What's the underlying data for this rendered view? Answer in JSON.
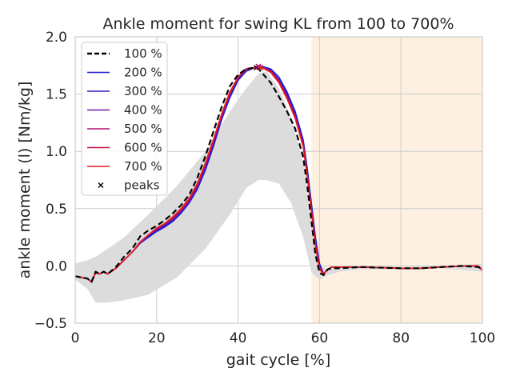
{
  "chart_data": {
    "type": "line",
    "title": "Ankle moment for swing KL from 100 to 700%",
    "xlabel": "gait cycle [%]",
    "ylabel": "ankle moment (l) [Nm/kg]",
    "xlim": [
      0,
      100
    ],
    "ylim": [
      -0.5,
      2.0
    ],
    "xticks": [
      "0",
      "20",
      "40",
      "60",
      "80",
      "100"
    ],
    "yticks": [
      "−0.5",
      "0.0",
      "0.5",
      "1.0",
      "1.5",
      "2.0"
    ],
    "grid": true,
    "legend_position": "top-left",
    "shaded_region": {
      "x_start": 58,
      "x_end": 100,
      "color": "#fdf0e0"
    },
    "variability_band": {
      "color": "#dcdcdc",
      "x": [
        0,
        3,
        5,
        8,
        12,
        18,
        25,
        32,
        38,
        42,
        45,
        47,
        50,
        53,
        56,
        58,
        60,
        62,
        65,
        70,
        80,
        90,
        100
      ],
      "upper": [
        0.02,
        0.05,
        0.08,
        0.15,
        0.25,
        0.45,
        0.7,
        1.0,
        1.35,
        1.55,
        1.68,
        1.7,
        1.55,
        1.3,
        0.9,
        0.4,
        0.0,
        -0.03,
        -0.02,
        -0.01,
        -0.01,
        0.0,
        0.02
      ],
      "lower": [
        -0.12,
        -0.2,
        -0.32,
        -0.32,
        -0.3,
        -0.25,
        -0.1,
        0.15,
        0.45,
        0.68,
        0.75,
        0.75,
        0.72,
        0.55,
        0.25,
        -0.05,
        -0.12,
        -0.08,
        -0.05,
        -0.03,
        -0.03,
        -0.02,
        -0.05
      ]
    },
    "x": [
      0,
      3,
      4,
      5,
      6,
      7,
      8,
      10,
      12,
      14,
      16,
      18,
      20,
      22,
      24,
      26,
      28,
      30,
      32,
      34,
      36,
      38,
      40,
      42,
      44,
      45,
      46,
      48,
      50,
      52,
      54,
      56,
      57,
      58,
      59,
      60,
      61,
      62,
      63,
      65,
      70,
      80,
      85,
      90,
      95,
      99,
      100
    ],
    "series": [
      {
        "name": "100 %",
        "color": "#000000",
        "dash": true,
        "values": [
          -0.09,
          -0.11,
          -0.14,
          -0.05,
          -0.07,
          -0.05,
          -0.07,
          -0.01,
          0.08,
          0.15,
          0.26,
          0.31,
          0.35,
          0.4,
          0.46,
          0.53,
          0.62,
          0.77,
          0.96,
          1.18,
          1.39,
          1.57,
          1.67,
          1.72,
          1.73,
          1.72,
          1.68,
          1.6,
          1.48,
          1.35,
          1.2,
          0.95,
          0.7,
          0.4,
          0.1,
          -0.06,
          -0.08,
          -0.03,
          -0.02,
          -0.02,
          -0.01,
          -0.02,
          -0.02,
          -0.01,
          0.0,
          -0.01,
          -0.03
        ]
      },
      {
        "name": "200 %",
        "color": "#1f1fd6",
        "values": [
          -0.09,
          -0.11,
          -0.14,
          -0.06,
          -0.07,
          -0.05,
          -0.07,
          -0.02,
          0.05,
          0.12,
          0.2,
          0.25,
          0.3,
          0.34,
          0.39,
          0.46,
          0.55,
          0.67,
          0.84,
          1.05,
          1.28,
          1.47,
          1.62,
          1.7,
          1.73,
          1.74,
          1.74,
          1.72,
          1.65,
          1.52,
          1.35,
          1.1,
          0.85,
          0.55,
          0.25,
          0.02,
          -0.07,
          -0.03,
          -0.01,
          -0.01,
          -0.01,
          -0.02,
          -0.02,
          -0.01,
          0.0,
          0.0,
          -0.04
        ]
      },
      {
        "name": "300 %",
        "color": "#3a16c4",
        "values": [
          -0.09,
          -0.11,
          -0.14,
          -0.06,
          -0.07,
          -0.05,
          -0.07,
          -0.02,
          0.05,
          0.12,
          0.2,
          0.26,
          0.31,
          0.35,
          0.4,
          0.47,
          0.56,
          0.68,
          0.86,
          1.07,
          1.3,
          1.49,
          1.63,
          1.71,
          1.73,
          1.74,
          1.73,
          1.71,
          1.63,
          1.5,
          1.33,
          1.08,
          0.82,
          0.52,
          0.22,
          0.0,
          -0.07,
          -0.03,
          -0.01,
          -0.01,
          -0.01,
          -0.02,
          -0.02,
          -0.01,
          0.0,
          0.0,
          -0.04
        ]
      },
      {
        "name": "400 %",
        "color": "#7a14a8",
        "values": [
          -0.09,
          -0.11,
          -0.14,
          -0.06,
          -0.07,
          -0.05,
          -0.07,
          -0.02,
          0.05,
          0.12,
          0.21,
          0.27,
          0.32,
          0.36,
          0.41,
          0.48,
          0.57,
          0.7,
          0.88,
          1.09,
          1.31,
          1.5,
          1.64,
          1.71,
          1.73,
          1.74,
          1.73,
          1.7,
          1.62,
          1.48,
          1.31,
          1.06,
          0.8,
          0.5,
          0.2,
          -0.01,
          -0.07,
          -0.03,
          -0.01,
          -0.01,
          -0.01,
          -0.02,
          -0.02,
          -0.01,
          0.0,
          0.0,
          -0.04
        ]
      },
      {
        "name": "500 %",
        "color": "#b0106e",
        "values": [
          -0.09,
          -0.11,
          -0.14,
          -0.06,
          -0.07,
          -0.05,
          -0.07,
          -0.02,
          0.05,
          0.12,
          0.21,
          0.27,
          0.32,
          0.37,
          0.42,
          0.49,
          0.58,
          0.71,
          0.89,
          1.1,
          1.32,
          1.51,
          1.65,
          1.72,
          1.73,
          1.74,
          1.73,
          1.7,
          1.61,
          1.47,
          1.3,
          1.05,
          0.79,
          0.49,
          0.19,
          -0.02,
          -0.07,
          -0.03,
          -0.01,
          -0.01,
          -0.01,
          -0.02,
          -0.02,
          -0.01,
          0.0,
          0.0,
          -0.04
        ]
      },
      {
        "name": "600 %",
        "color": "#cc1040",
        "values": [
          -0.09,
          -0.11,
          -0.14,
          -0.06,
          -0.07,
          -0.05,
          -0.07,
          -0.02,
          0.05,
          0.12,
          0.21,
          0.27,
          0.33,
          0.37,
          0.42,
          0.49,
          0.58,
          0.71,
          0.89,
          1.1,
          1.32,
          1.51,
          1.65,
          1.72,
          1.73,
          1.74,
          1.73,
          1.7,
          1.61,
          1.47,
          1.3,
          1.05,
          0.79,
          0.49,
          0.19,
          -0.02,
          -0.07,
          -0.03,
          -0.01,
          -0.01,
          -0.01,
          -0.02,
          -0.02,
          -0.01,
          0.0,
          0.0,
          -0.04
        ]
      },
      {
        "name": "700 %",
        "color": "#e81c1c",
        "values": [
          -0.09,
          -0.11,
          -0.14,
          -0.06,
          -0.07,
          -0.05,
          -0.07,
          -0.02,
          0.05,
          0.12,
          0.21,
          0.27,
          0.33,
          0.37,
          0.43,
          0.5,
          0.59,
          0.72,
          0.9,
          1.11,
          1.33,
          1.52,
          1.65,
          1.72,
          1.73,
          1.74,
          1.73,
          1.69,
          1.6,
          1.46,
          1.29,
          1.04,
          0.78,
          0.48,
          0.18,
          -0.03,
          -0.07,
          -0.03,
          -0.01,
          -0.01,
          -0.01,
          -0.02,
          -0.02,
          -0.01,
          0.0,
          0.0,
          -0.04
        ]
      }
    ],
    "peaks": {
      "name": "peaks",
      "x": [
        44.5,
        45,
        45,
        45,
        45,
        45.5,
        45.5
      ],
      "y": [
        1.73,
        1.74,
        1.74,
        1.74,
        1.74,
        1.73,
        1.73
      ]
    }
  }
}
